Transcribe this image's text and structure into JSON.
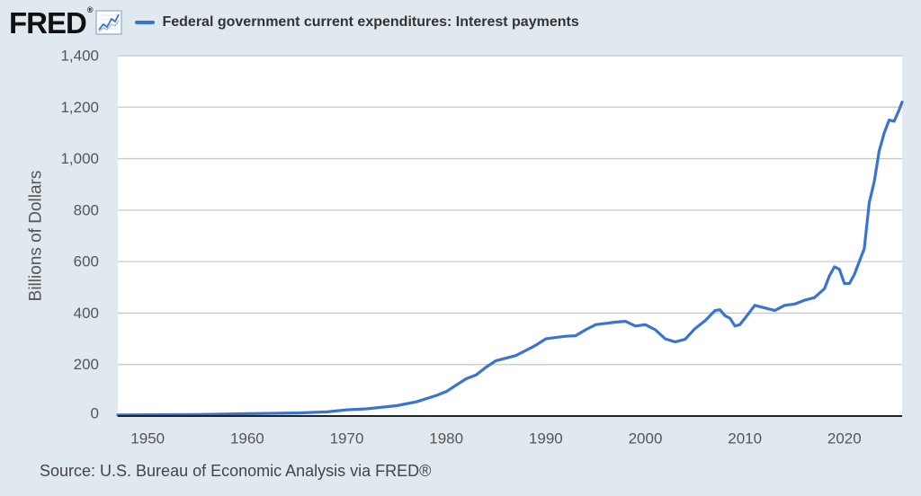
{
  "header": {
    "logo_text": "FRED",
    "logo_mark": "®",
    "logo_icon": "line-graph-icon",
    "legend_label": "Federal government current expenditures: Interest payments"
  },
  "source": "Source: U.S. Bureau of Economic Analysis via FRED®",
  "colors": {
    "background": "#e1e9f0",
    "plot_area": "#ffffff",
    "series": "#3a74d3",
    "grid": "#c8c8c8",
    "axis": "#222222"
  },
  "chart_data": {
    "type": "line",
    "ylabel": "Billions of Dollars",
    "xlabel": "",
    "title": "",
    "xlim": [
      1947,
      2025.8
    ],
    "ylim": [
      0,
      1400
    ],
    "x_ticks": [
      1950,
      1960,
      1970,
      1980,
      1990,
      2000,
      2010,
      2020
    ],
    "x_tick_labels": [
      "1950",
      "1960",
      "1970",
      "1980",
      "1990",
      "2000",
      "2010",
      "2020"
    ],
    "y_ticks": [
      0,
      200,
      400,
      600,
      800,
      1000,
      1200,
      1400
    ],
    "y_tick_labels": [
      "0",
      "200",
      "400",
      "600",
      "800",
      "1,000",
      "1,200",
      "1,400"
    ],
    "grid": true,
    "legend_position": "top",
    "series": [
      {
        "name": "Federal government current expenditures: Interest payments",
        "color": "#3a74d3",
        "x": [
          1947,
          1950,
          1955,
          1960,
          1965,
          1968,
          1970,
          1972,
          1975,
          1977,
          1979,
          1980,
          1981,
          1982,
          1983,
          1984,
          1985,
          1986,
          1987,
          1988,
          1989,
          1990,
          1991,
          1992,
          1993,
          1994,
          1995,
          1996,
          1997,
          1998,
          1999,
          2000,
          2001,
          2002,
          2003,
          2004,
          2005,
          2006,
          2007,
          2007.5,
          2008,
          2008.5,
          2009,
          2009.5,
          2010,
          2011,
          2012,
          2013,
          2014,
          2015,
          2016,
          2017,
          2018,
          2018.5,
          2019,
          2019.5,
          2020,
          2020.5,
          2021,
          2021.5,
          2022,
          2022.5,
          2023,
          2023.5,
          2024,
          2024.5,
          2025,
          2025.5,
          2025.8
        ],
        "y": [
          4,
          5,
          6,
          9,
          12,
          16,
          24,
          28,
          40,
          55,
          80,
          95,
          120,
          145,
          160,
          190,
          215,
          225,
          235,
          255,
          275,
          300,
          305,
          310,
          312,
          335,
          355,
          360,
          365,
          368,
          350,
          355,
          335,
          300,
          288,
          298,
          340,
          370,
          410,
          413,
          390,
          380,
          350,
          355,
          380,
          430,
          420,
          410,
          430,
          435,
          450,
          460,
          495,
          545,
          580,
          570,
          515,
          515,
          550,
          600,
          650,
          830,
          910,
          1030,
          1100,
          1150,
          1145,
          1190,
          1220
        ]
      }
    ]
  }
}
